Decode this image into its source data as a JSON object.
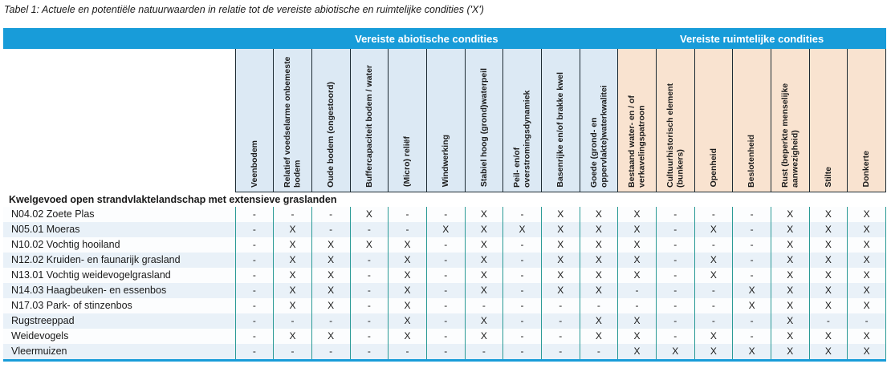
{
  "title": "Tabel 1: Actuele en potentiële natuurwaarden in relatie tot de vereiste abiotische en ruimtelijke condities ('X')",
  "colors": {
    "header_blue": "#189cd9",
    "header_text": "#ffffff",
    "abiotic_bg": "#dce9f4",
    "spatial_bg": "#f9e3d0",
    "grid_header": "#1d2b33",
    "grid_body": "#2a9a96",
    "row_alt": "#e9f1f8",
    "row_base": "#fcfdfe",
    "text": "#1a1a1a"
  },
  "table": {
    "groups": [
      {
        "label": "Vereiste abiotische condities",
        "span": 10
      },
      {
        "label": "Vereiste ruimtelijke condities",
        "span": 7
      }
    ],
    "columns": [
      {
        "label": "Veenbodem",
        "group": "abiotic"
      },
      {
        "label": "Relatief voedselarme onbemeste bodem",
        "group": "abiotic"
      },
      {
        "label": "Oude bodem (ongestoord)",
        "group": "abiotic"
      },
      {
        "label": "Buffercapaciteit bodem / water",
        "group": "abiotic"
      },
      {
        "label": "(Micro) reliëf",
        "group": "abiotic"
      },
      {
        "label": "Windwerking",
        "group": "abiotic"
      },
      {
        "label": "Stabiel hoog (grond)waterpeil",
        "group": "abiotic"
      },
      {
        "label": "Peil- en/of overstromingsdynamiek",
        "group": "abiotic"
      },
      {
        "label": "Basenrijke en/of brakke kwel",
        "group": "abiotic"
      },
      {
        "label": "Goede (grond- en oppervlakte)waterkwalitei",
        "group": "abiotic"
      },
      {
        "label": "Bestaand water- en / of verkavelingspatroon",
        "group": "spatial"
      },
      {
        "label": "Cultuurhistorisch element (bunkers)",
        "group": "spatial"
      },
      {
        "label": "Openheid",
        "group": "spatial"
      },
      {
        "label": "Beslotenheid",
        "group": "spatial"
      },
      {
        "label": "Rust (beperkte menselijke aanwezigheid)",
        "group": "spatial"
      },
      {
        "label": "Stilte",
        "group": "spatial"
      },
      {
        "label": "Donkerte",
        "group": "spatial"
      }
    ],
    "section_header": "Kwelgevoed open strandvlaktelandschap met extensieve graslanden",
    "rows": [
      {
        "label": "N04.02 Zoete Plas",
        "cells": [
          "-",
          "-",
          "-",
          "X",
          "-",
          "-",
          "X",
          "-",
          "X",
          "X",
          "X",
          "-",
          "-",
          "-",
          "X",
          "X",
          "X"
        ]
      },
      {
        "label": "N05.01 Moeras",
        "cells": [
          "-",
          "X",
          "-",
          "-",
          "-",
          "X",
          "X",
          "X",
          "X",
          "X",
          "X",
          "-",
          "X",
          "-",
          "X",
          "X",
          "X"
        ]
      },
      {
        "label": "N10.02 Vochtig hooiland",
        "cells": [
          "-",
          "X",
          "X",
          "X",
          "X",
          "-",
          "X",
          "-",
          "X",
          "X",
          "X",
          "-",
          "-",
          "-",
          "X",
          "X",
          "X"
        ]
      },
      {
        "label": "N12.02 Kruiden- en faunarijk grasland",
        "cells": [
          "-",
          "X",
          "X",
          "-",
          "X",
          "-",
          "X",
          "-",
          "X",
          "X",
          "X",
          "-",
          "X",
          "-",
          "X",
          "X",
          "X"
        ]
      },
      {
        "label": "N13.01 Vochtig weidevogelgrasland",
        "cells": [
          "-",
          "X",
          "X",
          "-",
          "X",
          "-",
          "X",
          "-",
          "X",
          "X",
          "X",
          "-",
          "X",
          "-",
          "X",
          "X",
          "X"
        ]
      },
      {
        "label": "N14.03 Haagbeuken- en essenbos",
        "cells": [
          "-",
          "X",
          "X",
          "-",
          "X",
          "-",
          "X",
          "-",
          "X",
          "X",
          "-",
          "-",
          "-",
          "X",
          "X",
          "X",
          "X"
        ]
      },
      {
        "label": "N17.03 Park- of stinzenbos",
        "cells": [
          "-",
          "X",
          "X",
          "-",
          "X",
          "-",
          "-",
          "-",
          "-",
          "-",
          "-",
          "-",
          "-",
          "X",
          "X",
          "X",
          "X"
        ]
      },
      {
        "label": "Rugstreeppad",
        "cells": [
          "-",
          "-",
          "-",
          "-",
          "X",
          "-",
          "X",
          "-",
          "-",
          "X",
          "X",
          "-",
          "-",
          "-",
          "X",
          "-",
          "-"
        ]
      },
      {
        "label": "Weidevogels",
        "cells": [
          "-",
          "X",
          "X",
          "-",
          "X",
          "-",
          "X",
          "-",
          "-",
          "X",
          "X",
          "-",
          "X",
          "-",
          "X",
          "X",
          "X"
        ]
      },
      {
        "label": "Vleermuizen",
        "cells": [
          "-",
          "-",
          "-",
          "-",
          "-",
          "-",
          "-",
          "-",
          "-",
          "-",
          "X",
          "X",
          "X",
          "X",
          "X",
          "X",
          "X"
        ]
      }
    ]
  }
}
